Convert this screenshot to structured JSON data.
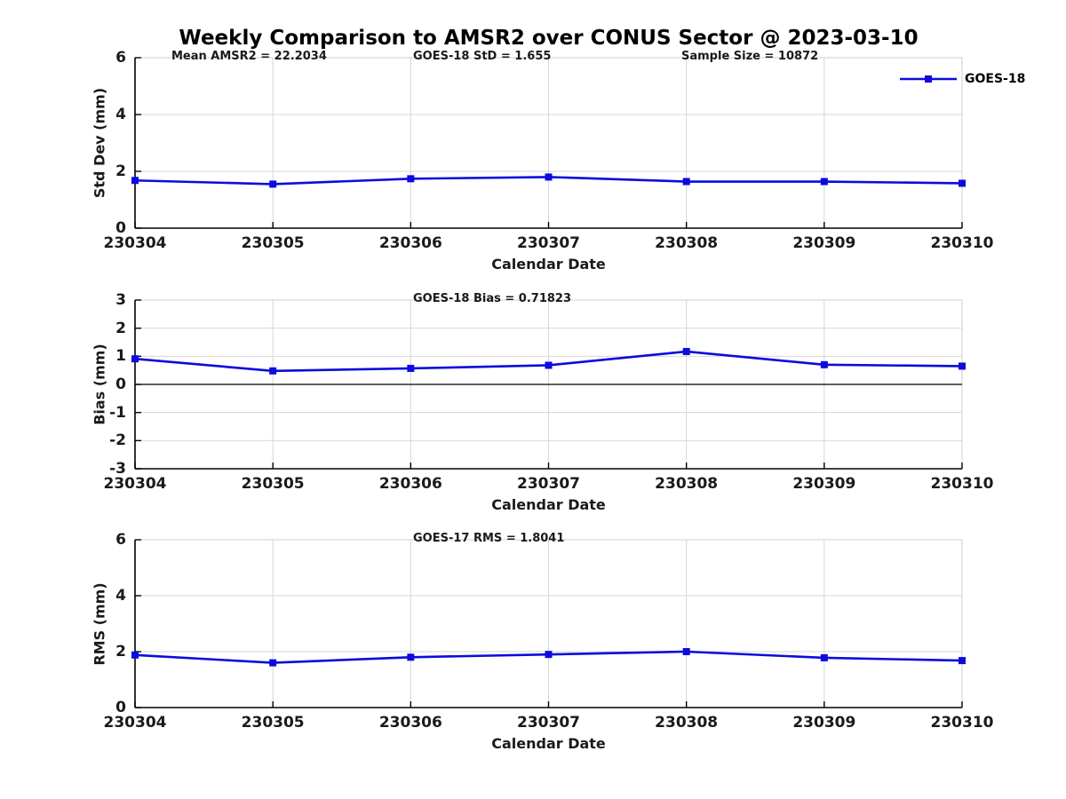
{
  "figure": {
    "title": "Weekly Comparison to AMSR2 over CONUS Sector @ 2023-03-10",
    "legend": {
      "label": "GOES-18"
    },
    "colors": {
      "line": "#0b0bdf",
      "grid": "#d6d6d6",
      "axis": "#000000",
      "text": "#1a1a1a"
    }
  },
  "chart_data": [
    {
      "type": "line",
      "subplot": "std-dev",
      "annotations": [
        "Mean AMSR2 = 22.2034",
        "GOES-18 StD = 1.655",
        "Sample Size = 10872"
      ],
      "categories": [
        "230304",
        "230305",
        "230306",
        "230307",
        "230308",
        "230309",
        "230310"
      ],
      "series": [
        {
          "name": "GOES-18",
          "values": [
            1.68,
            1.55,
            1.74,
            1.8,
            1.64,
            1.64,
            1.58
          ]
        }
      ],
      "xlabel": "Calendar Date",
      "ylabel": "Std Dev (mm)",
      "ylim": [
        0,
        6
      ],
      "yticks": [
        6,
        4,
        2,
        0
      ],
      "zero_line": false,
      "grid": true,
      "legend_position": "top-right-outside"
    },
    {
      "type": "line",
      "subplot": "bias",
      "annotations": [
        "GOES-18 Bias  = 0.71823"
      ],
      "categories": [
        "230304",
        "230305",
        "230306",
        "230307",
        "230308",
        "230309",
        "230310"
      ],
      "series": [
        {
          "name": "GOES-18",
          "values": [
            0.91,
            0.48,
            0.57,
            0.68,
            1.17,
            0.7,
            0.65
          ]
        }
      ],
      "xlabel": "Calendar Date",
      "ylabel": "Bias (mm)",
      "ylim": [
        -3,
        3
      ],
      "yticks": [
        3,
        2,
        1,
        0,
        -1,
        -2,
        -3
      ],
      "zero_line": true,
      "grid": true
    },
    {
      "type": "line",
      "subplot": "rms",
      "annotations": [
        "GOES-17 RMS = 1.8041"
      ],
      "categories": [
        "230304",
        "230305",
        "230306",
        "230307",
        "230308",
        "230309",
        "230310"
      ],
      "series": [
        {
          "name": "GOES-18",
          "values": [
            1.88,
            1.6,
            1.8,
            1.9,
            2.0,
            1.78,
            1.68
          ]
        }
      ],
      "xlabel": "Calendar Date",
      "ylabel": "RMS (mm)",
      "ylim": [
        0,
        6
      ],
      "yticks": [
        6,
        4,
        2,
        0
      ],
      "zero_line": false,
      "grid": true
    }
  ]
}
